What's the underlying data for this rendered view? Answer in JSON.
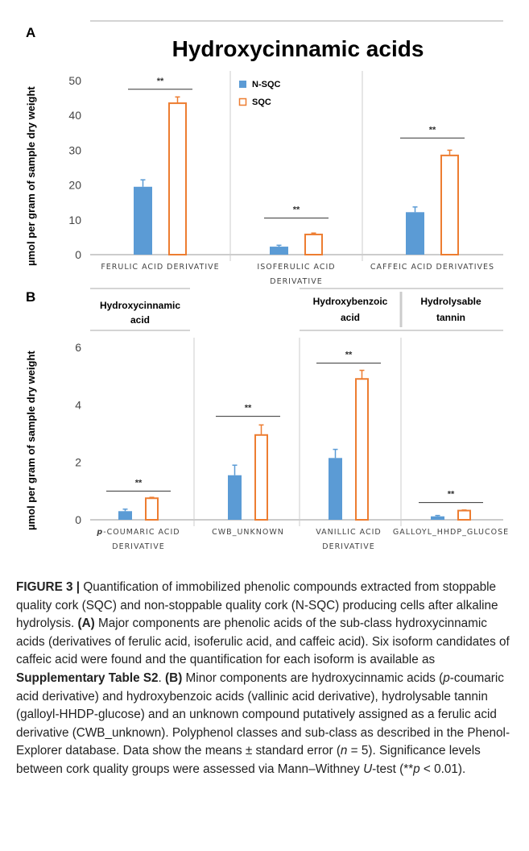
{
  "panel_a": {
    "letter": "A",
    "title": "Hydroxycinnamic acids",
    "ylabel": "µmol per gram of sample dry weight",
    "legend": [
      {
        "label": "N-SQC",
        "color": "#5b9bd5"
      },
      {
        "label": "SQC",
        "color": "#ed7d31"
      }
    ]
  },
  "panel_b": {
    "letter": "B",
    "ylabel": "µmol per gram of sample dry weight",
    "groups": {
      "g1_line1": "Hydroxycinnamic",
      "g1_line2": "acid",
      "g2_line1": "Hydroxybenzoic",
      "g2_line2": "acid",
      "g3_line1": "Hydrolysable",
      "g3_line2": "tannin"
    }
  },
  "chart_data": [
    {
      "type": "bar",
      "title": "Hydroxycinnamic acids",
      "ylabel": "µmol per gram of sample dry weight",
      "ylim": [
        0,
        50
      ],
      "yticks": [
        0,
        10,
        20,
        30,
        40,
        50
      ],
      "categories": [
        [
          "FERULIC ACID DERIVATIVE"
        ],
        [
          "ISOFERULIC ACID",
          "DERIVATIVE"
        ],
        [
          "CAFFEIC ACID DERIVATIVES"
        ]
      ],
      "series": [
        {
          "name": "N-SQC",
          "values": [
            19.5,
            2.3,
            12.2
          ],
          "errors": [
            2.0,
            0.4,
            1.5
          ]
        },
        {
          "name": "SQC",
          "values": [
            43.5,
            5.8,
            28.5
          ],
          "errors": [
            1.8,
            0.4,
            1.5
          ]
        }
      ],
      "significance": [
        "**",
        "**",
        "**"
      ],
      "sig_levels": [
        47.5,
        10.5,
        33.5
      ]
    },
    {
      "type": "bar",
      "ylabel": "µmol per gram of sample dry weight",
      "ylim": [
        0,
        6
      ],
      "yticks": [
        0,
        2,
        4,
        6
      ],
      "categories": [
        [
          "p-COUMARIC ACID",
          "DERIVATIVE"
        ],
        [
          "CWB_UNKNOWN"
        ],
        [
          "VANILLIC ACID",
          "DERIVATIVE"
        ],
        [
          "GALLOYL_HHDP_GLUCOSE"
        ]
      ],
      "series": [
        {
          "name": "N-SQC",
          "values": [
            0.3,
            1.55,
            2.15,
            0.12
          ],
          "errors": [
            0.07,
            0.35,
            0.3,
            0.03
          ]
        },
        {
          "name": "SQC",
          "values": [
            0.75,
            2.95,
            4.9,
            0.32
          ],
          "errors": [
            0.03,
            0.35,
            0.3,
            0.02
          ]
        }
      ],
      "significance": [
        "**",
        "**",
        "**",
        "**"
      ],
      "sig_levels": [
        1.0,
        3.6,
        5.45,
        0.6
      ]
    }
  ],
  "caption": {
    "label": "FIGURE 3 |",
    "s1": " Quantification of immobilized phenolic compounds extracted from stoppable quality cork (SQC) and non-stoppable quality cork (N-SQC) producing cells after alkaline hydrolysis. ",
    "a_label": "(A)",
    "s2": " Major components are phenolic acids of the sub-class hydroxycinnamic acids (derivatives of ferulic acid, isoferulic acid, and caffeic acid). Six isoform candidates of caffeic acid were found and the quantification for each isoform is available as ",
    "supp": "Supplementary Table S2",
    "s3": ". ",
    "b_label": "(B)",
    "s4": " Minor components are hydroxycinnamic acids (",
    "p_italic": "p",
    "s5": "-coumaric acid derivative) and hydroxybenzoic acids (vallinic acid derivative), hydrolysable tannin (galloyl-HHDP-glucose) and an unknown compound putatively assigned as a ferulic acid derivative (CWB_unknown). Polyphenol classes and sub-class as described in the Phenol-Explorer database. Data show the means ± standard error (",
    "n_italic": "n",
    "s6": " = 5). Significance levels between cork quality groups were assessed via Mann–Withney ",
    "u_italic": "U",
    "s7": "-test (**",
    "p2_italic": "p",
    "s8": " < 0.01)."
  }
}
